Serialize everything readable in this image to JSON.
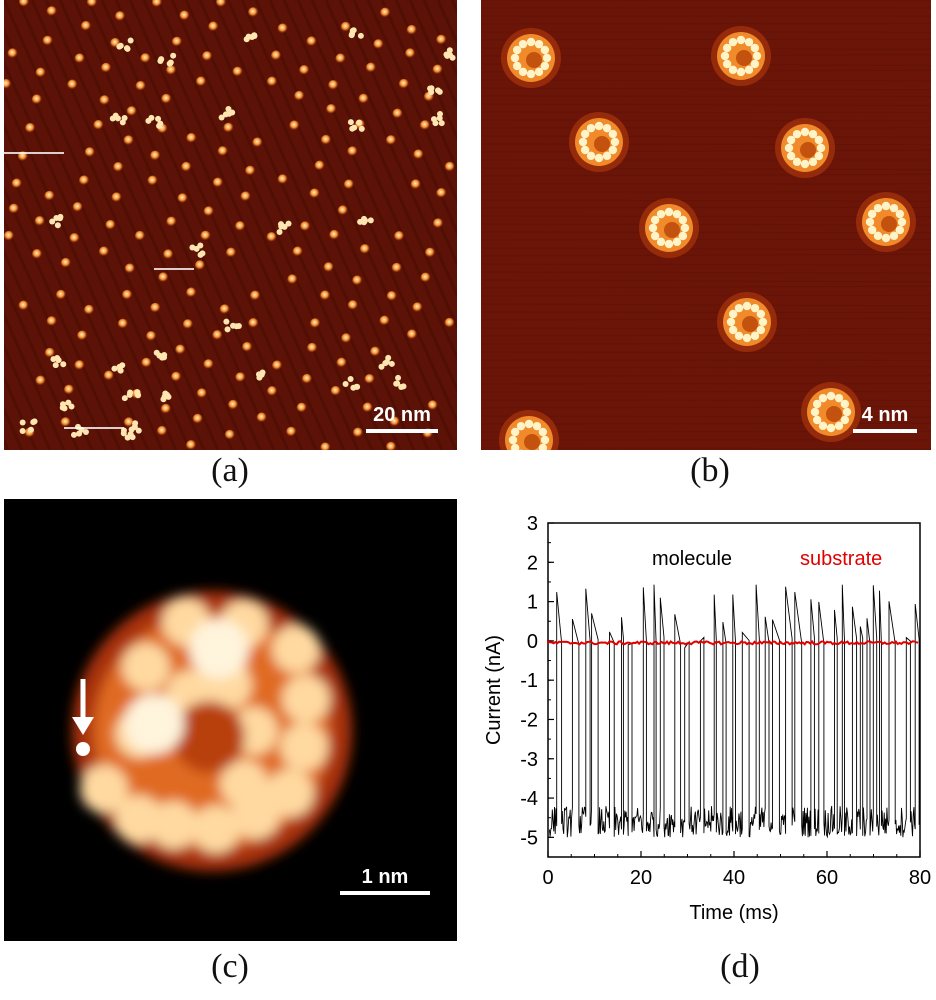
{
  "panels": {
    "a": {
      "label": "(a)",
      "scale_bar": "20 nm"
    },
    "b": {
      "label": "(b)",
      "scale_bar": "4 nm"
    },
    "c": {
      "label": "(c)",
      "scale_bar": "1 nm"
    },
    "d": {
      "label": "(d)"
    }
  },
  "colors": {
    "stm_background_a": "#5c1206",
    "stm_background_b": "#6a1508",
    "stm_background_c": "#000000",
    "molecule_hot": "#fff3c8",
    "molecule_warm": "#f08a2a",
    "molecule_cool": "#b23a0c",
    "trace_molecule": "#000000",
    "trace_substrate": "#e00000"
  },
  "chart_data": {
    "type": "line",
    "xlabel": "Time (ms)",
    "ylabel": "Current (nA)",
    "xlim": [
      0,
      80
    ],
    "ylim": [
      -5.5,
      3
    ],
    "xticks": [
      0,
      20,
      40,
      60,
      80
    ],
    "yticks": [
      3,
      2,
      1,
      0,
      -1,
      -2,
      -3,
      -4,
      -5
    ],
    "legend": [
      {
        "name": "molecule",
        "color": "#000000"
      },
      {
        "name": "substrate",
        "color": "#e00000"
      }
    ],
    "series": [
      {
        "name": "molecule",
        "description_values": "telegraph switching between approx 0 nA and -4.5 to -5 nA with spikes up to ~1.5 nA",
        "low_level_range": [
          -5.0,
          -4.2
        ],
        "high_level": 0.0,
        "spike_max": 1.45
      },
      {
        "name": "substrate",
        "constant_value": -0.05
      }
    ]
  }
}
